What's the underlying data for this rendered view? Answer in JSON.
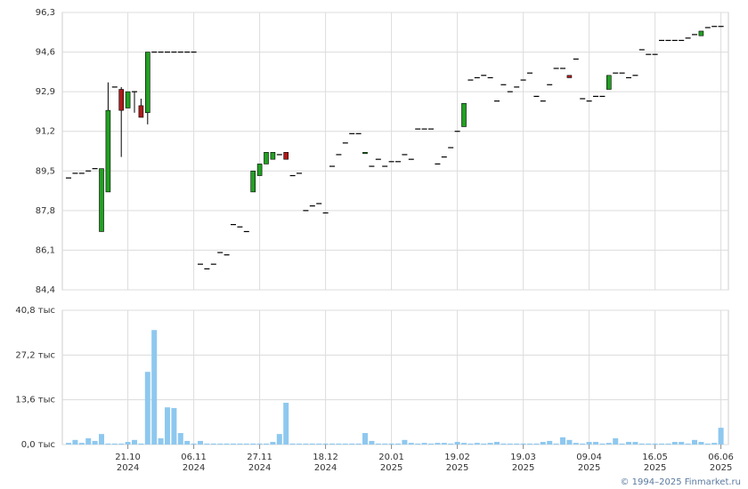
{
  "chart_data": {
    "type": "candlestick",
    "categories": [
      null,
      null,
      null,
      null,
      null,
      null,
      null,
      null,
      null,
      [
        "21.10",
        "2024"
      ],
      null,
      null,
      null,
      null,
      null,
      null,
      null,
      null,
      null,
      [
        "06.11",
        "2024"
      ],
      null,
      null,
      null,
      null,
      null,
      null,
      null,
      null,
      null,
      [
        "27.11",
        "2024"
      ],
      null,
      null,
      null,
      null,
      null,
      null,
      null,
      null,
      null,
      [
        "18.12",
        "2024"
      ],
      null,
      null,
      null,
      null,
      null,
      null,
      null,
      null,
      null,
      [
        "20.01",
        "2025"
      ],
      null,
      null,
      null,
      null,
      null,
      null,
      null,
      null,
      null,
      [
        "19.02",
        "2025"
      ],
      null,
      null,
      null,
      null,
      null,
      null,
      null,
      null,
      null,
      [
        "19.03",
        "2025"
      ],
      null,
      null,
      null,
      null,
      null,
      null,
      null,
      null,
      null,
      [
        "09.04",
        "2025"
      ],
      null,
      null,
      null,
      null,
      null,
      null,
      null,
      null,
      null,
      [
        "16.05",
        "2025"
      ],
      null,
      null,
      null,
      null,
      null,
      null,
      null,
      null,
      null,
      [
        "06.06",
        "2025"
      ]
    ],
    "open": [
      89.2,
      89.4,
      89.4,
      89.5,
      89.6,
      86.9,
      88.6,
      93.1,
      93.0,
      92.2,
      92.9,
      92.3,
      92.0,
      94.6,
      94.6,
      94.6,
      94.6,
      94.6,
      94.6,
      94.6,
      85.5,
      85.3,
      85.5,
      86.0,
      85.9,
      87.2,
      87.1,
      86.9,
      88.6,
      89.3,
      89.8,
      90.0,
      90.2,
      90.3,
      89.3,
      89.4,
      87.8,
      88.0,
      88.1,
      87.7,
      89.7,
      90.2,
      90.7,
      91.1,
      91.1,
      90.25,
      89.7,
      90.0,
      89.7,
      89.9,
      89.9,
      90.2,
      90.0,
      91.3,
      91.3,
      91.3,
      89.8,
      90.1,
      90.5,
      91.2,
      91.4,
      93.4,
      93.5,
      93.6,
      93.5,
      92.5,
      93.2,
      92.9,
      93.1,
      93.4,
      93.7,
      92.7,
      92.5,
      93.2,
      93.9,
      93.9,
      93.6,
      94.3,
      92.6,
      92.5,
      92.7,
      92.7,
      93.0,
      93.7,
      93.7,
      93.5,
      93.6,
      94.7,
      94.5,
      94.5,
      95.1,
      95.1,
      95.1,
      95.1,
      95.2,
      95.35,
      95.3,
      95.65,
      95.7,
      95.7
    ],
    "high": [
      89.2,
      89.4,
      89.4,
      89.5,
      89.6,
      89.6,
      93.3,
      93.1,
      93.1,
      92.9,
      92.9,
      92.6,
      94.6,
      94.6,
      94.6,
      94.6,
      94.6,
      94.6,
      94.6,
      94.6,
      85.5,
      85.3,
      85.5,
      86.0,
      85.9,
      87.2,
      87.1,
      86.9,
      89.5,
      89.8,
      90.3,
      90.3,
      90.2,
      90.3,
      89.3,
      89.4,
      87.8,
      88.0,
      88.1,
      87.7,
      89.7,
      90.2,
      90.7,
      91.1,
      91.1,
      90.3,
      89.7,
      90.0,
      89.7,
      89.9,
      89.9,
      90.2,
      90.0,
      91.3,
      91.3,
      91.3,
      89.8,
      90.1,
      90.5,
      91.2,
      92.4,
      93.4,
      93.5,
      93.6,
      93.5,
      92.5,
      93.2,
      92.9,
      93.1,
      93.4,
      93.7,
      92.7,
      92.5,
      93.2,
      93.9,
      93.9,
      93.6,
      94.3,
      92.6,
      92.5,
      92.7,
      92.7,
      93.6,
      93.7,
      93.7,
      93.5,
      93.6,
      94.7,
      94.5,
      94.5,
      95.1,
      95.1,
      95.1,
      95.1,
      95.2,
      95.35,
      95.5,
      95.65,
      95.7,
      95.7
    ],
    "low": [
      89.2,
      89.4,
      89.4,
      89.5,
      89.6,
      86.9,
      88.6,
      93.1,
      90.1,
      92.2,
      92.0,
      91.8,
      91.5,
      94.6,
      94.6,
      94.6,
      94.6,
      94.6,
      94.6,
      94.6,
      85.5,
      85.3,
      85.5,
      86.0,
      85.9,
      87.2,
      87.1,
      86.9,
      88.6,
      89.3,
      89.8,
      90.0,
      90.2,
      90.0,
      89.3,
      89.4,
      87.8,
      88.0,
      88.1,
      87.7,
      89.7,
      90.2,
      90.7,
      91.1,
      91.1,
      90.25,
      89.7,
      90.0,
      89.7,
      89.9,
      89.9,
      90.2,
      90.0,
      91.3,
      91.3,
      91.3,
      89.8,
      90.1,
      90.5,
      91.2,
      91.4,
      93.4,
      93.5,
      93.6,
      93.5,
      92.5,
      93.2,
      92.9,
      93.1,
      93.4,
      93.7,
      92.7,
      92.5,
      93.2,
      93.9,
      93.9,
      93.5,
      94.3,
      92.6,
      92.5,
      92.7,
      92.7,
      93.0,
      93.7,
      93.7,
      93.5,
      93.6,
      94.7,
      94.5,
      94.5,
      95.1,
      95.1,
      95.1,
      95.1,
      95.2,
      95.35,
      95.3,
      95.65,
      95.7,
      95.7
    ],
    "close": [
      89.2,
      89.4,
      89.4,
      89.5,
      89.6,
      89.6,
      92.1,
      93.1,
      92.1,
      92.9,
      92.9,
      91.8,
      94.6,
      94.6,
      94.6,
      94.6,
      94.6,
      94.6,
      94.6,
      94.6,
      85.5,
      85.3,
      85.5,
      86.0,
      85.9,
      87.2,
      87.1,
      86.9,
      89.5,
      89.8,
      90.3,
      90.3,
      90.2,
      90.0,
      89.3,
      89.4,
      87.8,
      88.0,
      88.1,
      87.7,
      89.7,
      90.2,
      90.7,
      91.1,
      91.1,
      90.3,
      89.7,
      90.0,
      89.7,
      89.9,
      89.9,
      90.2,
      90.0,
      91.3,
      91.3,
      91.3,
      89.8,
      90.1,
      90.5,
      91.2,
      92.4,
      93.4,
      93.5,
      93.6,
      93.5,
      92.5,
      93.2,
      92.9,
      93.1,
      93.4,
      93.7,
      92.7,
      92.5,
      93.2,
      93.9,
      93.9,
      93.5,
      94.3,
      92.6,
      92.5,
      92.7,
      92.7,
      93.6,
      93.7,
      93.7,
      93.5,
      93.6,
      94.7,
      94.5,
      94.5,
      95.1,
      95.1,
      95.1,
      95.1,
      95.2,
      95.35,
      95.5,
      95.65,
      95.7,
      95.7
    ],
    "volume": [
      0.5,
      1.4,
      0.5,
      1.9,
      1.1,
      3.2,
      0.3,
      0.3,
      0.3,
      0.8,
      1.4,
      0.3,
      22.1,
      34.8,
      1.9,
      11.3,
      11.1,
      3.5,
      1.1,
      0.3,
      1.1,
      0.3,
      0.3,
      0.3,
      0.3,
      0.3,
      0.3,
      0.3,
      0.3,
      0.3,
      0.3,
      0.8,
      3.2,
      12.7,
      0.3,
      0.3,
      0.3,
      0.3,
      0.3,
      0.3,
      0.3,
      0.3,
      0.3,
      0.3,
      0.3,
      3.5,
      1.1,
      0.3,
      0.3,
      0.3,
      0.3,
      1.4,
      0.5,
      0.3,
      0.5,
      0.3,
      0.5,
      0.5,
      0.3,
      0.8,
      0.5,
      0.3,
      0.5,
      0.3,
      0.5,
      0.8,
      0.3,
      0.3,
      0.3,
      0.3,
      0.3,
      0.3,
      0.8,
      1.1,
      0.3,
      2.2,
      1.4,
      0.5,
      0.3,
      0.8,
      0.8,
      0.3,
      0.5,
      1.9,
      0.3,
      0.8,
      0.8,
      0.3,
      0.3,
      0.3,
      0.3,
      0.3,
      0.8,
      0.8,
      0.3,
      1.4,
      0.8,
      0.3,
      0.5,
      5.1
    ],
    "up_color": "#22a022",
    "down_color": "#b01a1a",
    "volume_color": "#8ec8ef",
    "ylim": [
      84.4,
      96.3
    ],
    "yticks": [
      {
        "value": 84.4,
        "label": "84,4"
      },
      {
        "value": 86.1,
        "label": "86,1"
      },
      {
        "value": 87.8,
        "label": "87,8"
      },
      {
        "value": 89.5,
        "label": "89,5"
      },
      {
        "value": 91.2,
        "label": "91,2"
      },
      {
        "value": 92.9,
        "label": "92,9"
      },
      {
        "value": 94.6,
        "label": "94,6"
      },
      {
        "value": 96.3,
        "label": "96,3"
      }
    ],
    "volume_ylim": [
      0,
      40.8
    ],
    "volume_yticks": [
      {
        "value": 0,
        "label": "0,0 тыс"
      },
      {
        "value": 13.6,
        "label": "13,6 тыс"
      },
      {
        "value": 27.2,
        "label": "27,2 тыс"
      },
      {
        "value": 40.8,
        "label": "40,8 тыс"
      }
    ],
    "grid": true
  },
  "footer": "© 1994–2025 Finmarket.ru"
}
